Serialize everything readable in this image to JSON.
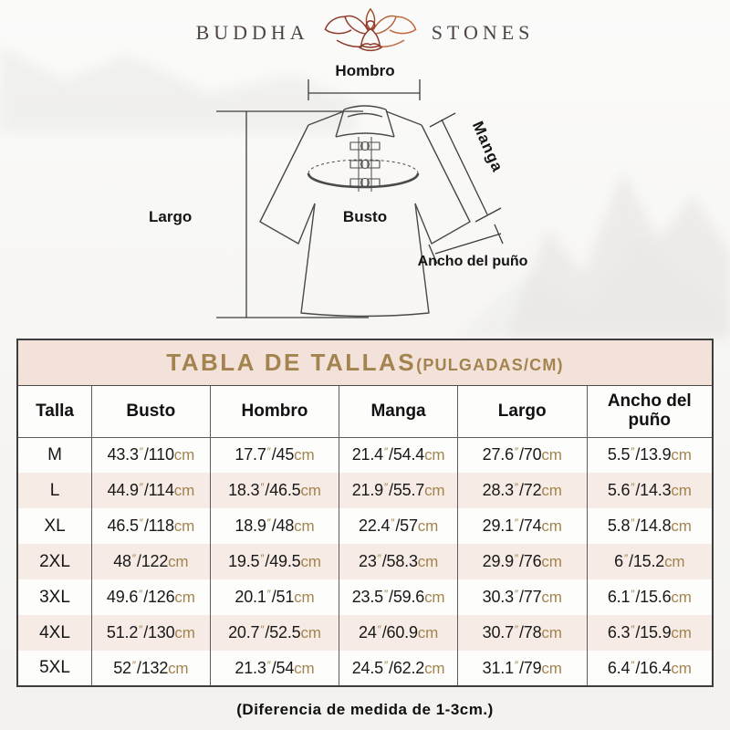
{
  "brand": {
    "name_left": "BUDDHA",
    "name_right": "STONES",
    "logo_icon": "lotus-meditation-icon"
  },
  "diagram": {
    "label_shoulder": "Hombro",
    "label_sleeve": "Manga",
    "label_length": "Largo",
    "label_bust": "Busto",
    "label_cuff": "Ancho del puño"
  },
  "size_chart": {
    "title": "TABLA DE TALLAS",
    "title_units": "(PULGADAS/CM)",
    "columns": [
      "Talla",
      "Busto",
      "Hombro",
      "Manga",
      "Largo",
      "Ancho del puño"
    ],
    "unit_inch_symbol": "″",
    "unit_cm_label": "cm",
    "rows": [
      {
        "size": "M",
        "measures": [
          [
            "43.3",
            "110"
          ],
          [
            "17.7",
            "45"
          ],
          [
            "21.4",
            "54.4"
          ],
          [
            "27.6",
            "70"
          ],
          [
            "5.5",
            "13.9"
          ]
        ]
      },
      {
        "size": "L",
        "measures": [
          [
            "44.9",
            "114"
          ],
          [
            "18.3",
            "46.5"
          ],
          [
            "21.9",
            "55.7"
          ],
          [
            "28.3",
            "72"
          ],
          [
            "5.6",
            "14.3"
          ]
        ]
      },
      {
        "size": "XL",
        "measures": [
          [
            "46.5",
            "118"
          ],
          [
            "18.9",
            "48"
          ],
          [
            "22.4",
            "57"
          ],
          [
            "29.1",
            "74"
          ],
          [
            "5.8",
            "14.8"
          ]
        ]
      },
      {
        "size": "2XL",
        "measures": [
          [
            "48",
            "122"
          ],
          [
            "19.5",
            "49.5"
          ],
          [
            "23",
            "58.3"
          ],
          [
            "29.9",
            "76"
          ],
          [
            "6",
            "15.2"
          ]
        ]
      },
      {
        "size": "3XL",
        "measures": [
          [
            "49.6",
            "126"
          ],
          [
            "20.1",
            "51"
          ],
          [
            "23.5",
            "59.6"
          ],
          [
            "30.3",
            "77"
          ],
          [
            "6.1",
            "15.6"
          ]
        ]
      },
      {
        "size": "4XL",
        "measures": [
          [
            "51.2",
            "130"
          ],
          [
            "20.7",
            "52.5"
          ],
          [
            "24",
            "60.9"
          ],
          [
            "30.7",
            "78"
          ],
          [
            "6.3",
            "15.9"
          ]
        ]
      },
      {
        "size": "5XL",
        "measures": [
          [
            "52",
            "132"
          ],
          [
            "21.3",
            "54"
          ],
          [
            "24.5",
            "62.2"
          ],
          [
            "31.1",
            "79"
          ],
          [
            "6.4",
            "16.4"
          ]
        ]
      }
    ]
  },
  "footnote": "(Diferencia de medida de 1-3cm.)",
  "colors": {
    "accent_gold": "#a3834e",
    "title_bg": "#f3e2da",
    "row_alt_bg": "#f6ebe5",
    "logo_maroon": "#96402e",
    "logo_orange": "#b5653c"
  }
}
